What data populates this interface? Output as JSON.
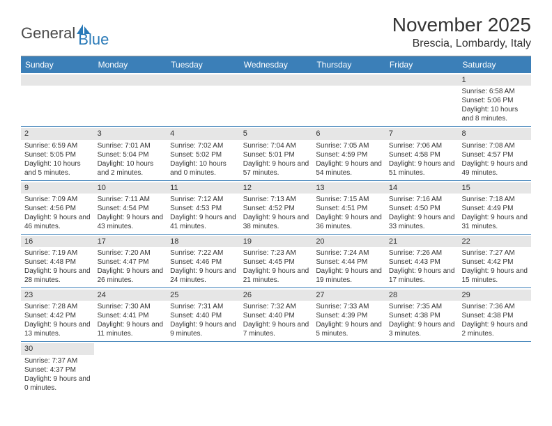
{
  "logo": {
    "text1": "General",
    "text2": "Blue"
  },
  "title": "November 2025",
  "location": "Brescia, Lombardy, Italy",
  "colors": {
    "header_bg": "#3b7fb8",
    "header_text": "#ffffff",
    "band_bg": "#e6e6e6",
    "row_border": "#3b7fb8",
    "text": "#333333",
    "logo_gray": "#4a4a4a",
    "logo_blue": "#2a7ab8"
  },
  "day_headers": [
    "Sunday",
    "Monday",
    "Tuesday",
    "Wednesday",
    "Thursday",
    "Friday",
    "Saturday"
  ],
  "weeks": [
    [
      null,
      null,
      null,
      null,
      null,
      null,
      {
        "n": "1",
        "sr": "6:58 AM",
        "ss": "5:06 PM",
        "dl": "10 hours and 8 minutes."
      }
    ],
    [
      {
        "n": "2",
        "sr": "6:59 AM",
        "ss": "5:05 PM",
        "dl": "10 hours and 5 minutes."
      },
      {
        "n": "3",
        "sr": "7:01 AM",
        "ss": "5:04 PM",
        "dl": "10 hours and 2 minutes."
      },
      {
        "n": "4",
        "sr": "7:02 AM",
        "ss": "5:02 PM",
        "dl": "10 hours and 0 minutes."
      },
      {
        "n": "5",
        "sr": "7:04 AM",
        "ss": "5:01 PM",
        "dl": "9 hours and 57 minutes."
      },
      {
        "n": "6",
        "sr": "7:05 AM",
        "ss": "4:59 PM",
        "dl": "9 hours and 54 minutes."
      },
      {
        "n": "7",
        "sr": "7:06 AM",
        "ss": "4:58 PM",
        "dl": "9 hours and 51 minutes."
      },
      {
        "n": "8",
        "sr": "7:08 AM",
        "ss": "4:57 PM",
        "dl": "9 hours and 49 minutes."
      }
    ],
    [
      {
        "n": "9",
        "sr": "7:09 AM",
        "ss": "4:56 PM",
        "dl": "9 hours and 46 minutes."
      },
      {
        "n": "10",
        "sr": "7:11 AM",
        "ss": "4:54 PM",
        "dl": "9 hours and 43 minutes."
      },
      {
        "n": "11",
        "sr": "7:12 AM",
        "ss": "4:53 PM",
        "dl": "9 hours and 41 minutes."
      },
      {
        "n": "12",
        "sr": "7:13 AM",
        "ss": "4:52 PM",
        "dl": "9 hours and 38 minutes."
      },
      {
        "n": "13",
        "sr": "7:15 AM",
        "ss": "4:51 PM",
        "dl": "9 hours and 36 minutes."
      },
      {
        "n": "14",
        "sr": "7:16 AM",
        "ss": "4:50 PM",
        "dl": "9 hours and 33 minutes."
      },
      {
        "n": "15",
        "sr": "7:18 AM",
        "ss": "4:49 PM",
        "dl": "9 hours and 31 minutes."
      }
    ],
    [
      {
        "n": "16",
        "sr": "7:19 AM",
        "ss": "4:48 PM",
        "dl": "9 hours and 28 minutes."
      },
      {
        "n": "17",
        "sr": "7:20 AM",
        "ss": "4:47 PM",
        "dl": "9 hours and 26 minutes."
      },
      {
        "n": "18",
        "sr": "7:22 AM",
        "ss": "4:46 PM",
        "dl": "9 hours and 24 minutes."
      },
      {
        "n": "19",
        "sr": "7:23 AM",
        "ss": "4:45 PM",
        "dl": "9 hours and 21 minutes."
      },
      {
        "n": "20",
        "sr": "7:24 AM",
        "ss": "4:44 PM",
        "dl": "9 hours and 19 minutes."
      },
      {
        "n": "21",
        "sr": "7:26 AM",
        "ss": "4:43 PM",
        "dl": "9 hours and 17 minutes."
      },
      {
        "n": "22",
        "sr": "7:27 AM",
        "ss": "4:42 PM",
        "dl": "9 hours and 15 minutes."
      }
    ],
    [
      {
        "n": "23",
        "sr": "7:28 AM",
        "ss": "4:42 PM",
        "dl": "9 hours and 13 minutes."
      },
      {
        "n": "24",
        "sr": "7:30 AM",
        "ss": "4:41 PM",
        "dl": "9 hours and 11 minutes."
      },
      {
        "n": "25",
        "sr": "7:31 AM",
        "ss": "4:40 PM",
        "dl": "9 hours and 9 minutes."
      },
      {
        "n": "26",
        "sr": "7:32 AM",
        "ss": "4:40 PM",
        "dl": "9 hours and 7 minutes."
      },
      {
        "n": "27",
        "sr": "7:33 AM",
        "ss": "4:39 PM",
        "dl": "9 hours and 5 minutes."
      },
      {
        "n": "28",
        "sr": "7:35 AM",
        "ss": "4:38 PM",
        "dl": "9 hours and 3 minutes."
      },
      {
        "n": "29",
        "sr": "7:36 AM",
        "ss": "4:38 PM",
        "dl": "9 hours and 2 minutes."
      }
    ],
    [
      {
        "n": "30",
        "sr": "7:37 AM",
        "ss": "4:37 PM",
        "dl": "9 hours and 0 minutes."
      },
      null,
      null,
      null,
      null,
      null,
      null
    ]
  ],
  "labels": {
    "sunrise": "Sunrise:",
    "sunset": "Sunset:",
    "daylight": "Daylight:"
  }
}
